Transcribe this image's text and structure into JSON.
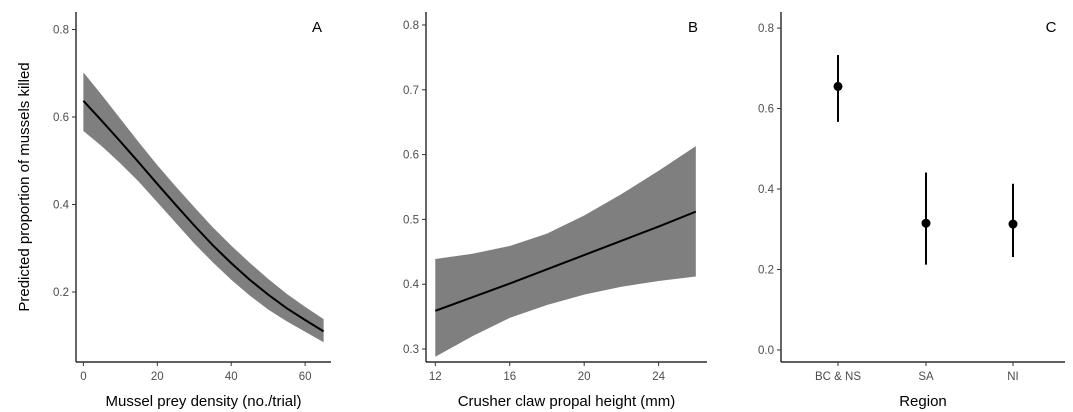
{
  "figure": {
    "ylabel": "Predicted proportion of mussels killed"
  },
  "chart_data": [
    {
      "type": "line",
      "panel": "A",
      "xlabel": "Mussel prey density (no./trial)",
      "ylabel": "Predicted proportion of mussels killed",
      "xlim": [
        -2,
        67
      ],
      "ylim": [
        0.04,
        0.84
      ],
      "xticks": [
        0,
        20,
        40,
        60
      ],
      "yticks": [
        0.2,
        0.4,
        0.6,
        0.8
      ],
      "grid": false,
      "series": [
        {
          "x": [
            0,
            5,
            10,
            15,
            20,
            25,
            30,
            35,
            40,
            45,
            50,
            55,
            60,
            65
          ],
          "y": [
            0.637,
            0.591,
            0.544,
            0.496,
            0.447,
            0.399,
            0.352,
            0.307,
            0.266,
            0.228,
            0.194,
            0.163,
            0.136,
            0.11
          ],
          "lower": [
            0.568,
            0.533,
            0.494,
            0.452,
            0.405,
            0.358,
            0.311,
            0.268,
            0.228,
            0.192,
            0.16,
            0.133,
            0.109,
            0.085
          ],
          "upper": [
            0.702,
            0.65,
            0.596,
            0.542,
            0.49,
            0.441,
            0.394,
            0.348,
            0.306,
            0.267,
            0.23,
            0.196,
            0.166,
            0.138
          ]
        }
      ],
      "colors": {
        "line": "#000000",
        "band": "#7f7f7f"
      }
    },
    {
      "type": "line",
      "panel": "B",
      "xlabel": "Crusher claw propal height (mm)",
      "ylabel": "",
      "xlim": [
        11.5,
        26.6
      ],
      "ylim": [
        0.28,
        0.82
      ],
      "xticks": [
        12,
        16,
        20,
        24
      ],
      "yticks": [
        0.3,
        0.4,
        0.5,
        0.6,
        0.7,
        0.8
      ],
      "grid": false,
      "series": [
        {
          "x": [
            12,
            14,
            16,
            18,
            20,
            22,
            24,
            26
          ],
          "y": [
            0.359,
            0.38,
            0.401,
            0.423,
            0.445,
            0.467,
            0.489,
            0.512
          ],
          "lower": [
            0.288,
            0.32,
            0.348,
            0.368,
            0.384,
            0.396,
            0.405,
            0.412
          ],
          "upper": [
            0.439,
            0.447,
            0.459,
            0.478,
            0.506,
            0.539,
            0.575,
            0.613
          ]
        }
      ],
      "colors": {
        "line": "#000000",
        "band": "#7f7f7f"
      }
    },
    {
      "type": "scatter",
      "panel": "C",
      "xlabel": "Region",
      "ylabel": "",
      "categories": [
        "BC & NS",
        "SA",
        "NI"
      ],
      "ylim": [
        -0.03,
        0.84
      ],
      "yticks": [
        0.0,
        0.2,
        0.4,
        0.6,
        0.8
      ],
      "grid": false,
      "values": [
        0.655,
        0.315,
        0.313
      ],
      "lower": [
        0.567,
        0.212,
        0.231
      ],
      "upper": [
        0.733,
        0.441,
        0.413
      ],
      "colors": {
        "point": "#000000"
      }
    }
  ]
}
